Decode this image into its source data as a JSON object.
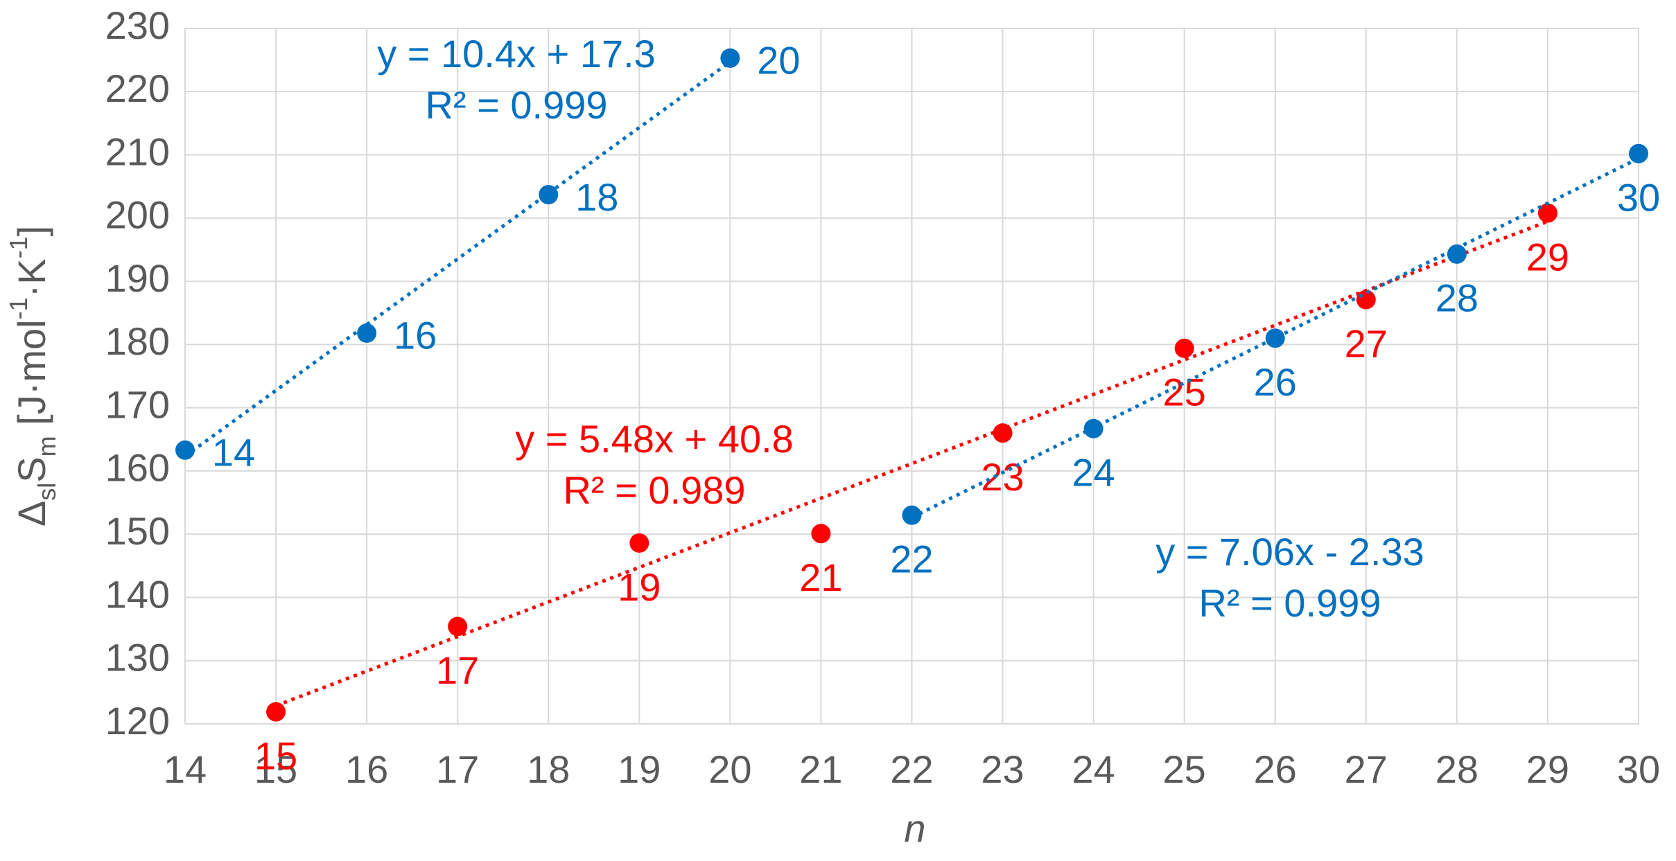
{
  "chart_data": {
    "type": "scatter",
    "xlabel": "n",
    "ylabel": [
      "Δ",
      "sl",
      "S",
      "m",
      " [J·mol",
      "-1",
      "·K",
      "-1",
      "]"
    ],
    "xlim": [
      14,
      30
    ],
    "xticks": [
      14,
      15,
      16,
      17,
      18,
      19,
      20,
      21,
      22,
      23,
      24,
      25,
      26,
      27,
      28,
      29,
      30
    ],
    "ylim": [
      120,
      230
    ],
    "yticks": [
      120,
      130,
      140,
      150,
      160,
      170,
      180,
      190,
      200,
      210,
      220,
      230
    ],
    "grid": true,
    "series": [
      {
        "color": "#0070c0",
        "x": [
          14,
          16,
          18,
          20
        ],
        "values": [
          163.3,
          181.8,
          203.7,
          225.3
        ],
        "equation": "y = 10.4x + 17.3",
        "r_squared": "R² = 0.999"
      },
      {
        "color": "#ff0000",
        "x": [
          15,
          17,
          19,
          21,
          23,
          25,
          27,
          29
        ],
        "values": [
          121.9,
          135.4,
          148.6,
          150.1,
          166,
          179.4,
          187.1,
          200.8
        ],
        "equation": "y = 5.48x + 40.8",
        "r_squared": "R² = 0.989"
      },
      {
        "color": "#0070c0",
        "x": [
          22,
          24,
          26,
          28,
          30
        ],
        "values": [
          153,
          166.7,
          181,
          194.3,
          210.2
        ],
        "equation": "y = 7.06x - 2.33",
        "r_squared": "R² = 0.999"
      }
    ]
  }
}
